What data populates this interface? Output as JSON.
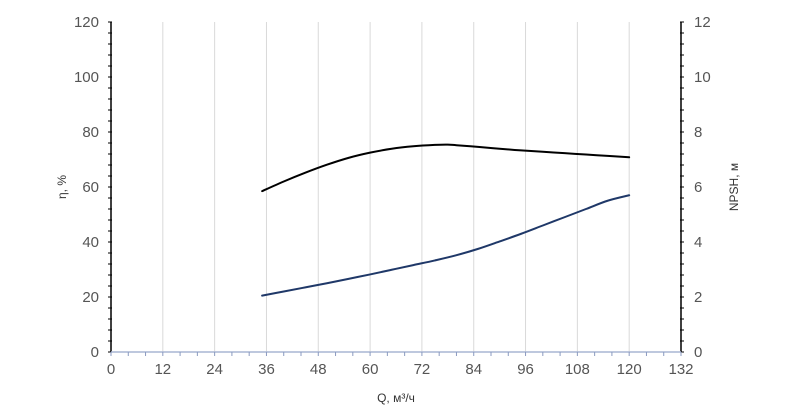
{
  "chart_data": {
    "type": "line",
    "title": "",
    "xlabel": "Q, м³/ч",
    "ylabel_left": "η, %",
    "ylabel_right": "NPSH, м",
    "xlim": [
      0,
      132
    ],
    "ylim_left": [
      0,
      120
    ],
    "ylim_right": [
      0,
      12
    ],
    "x_ticks": [
      "0",
      "12",
      "24",
      "36",
      "48",
      "60",
      "72",
      "84",
      "96",
      "108",
      "120",
      "132"
    ],
    "y_left_ticks": [
      "0",
      "20",
      "40",
      "60",
      "80",
      "100",
      "120"
    ],
    "y_right_ticks": [
      "0",
      "2",
      "4",
      "6",
      "8",
      "10",
      "12"
    ],
    "grid": "vertical",
    "legend": "none",
    "series": [
      {
        "axis": "left",
        "color": "#000000",
        "x": [
          35,
          40,
          45,
          50,
          55,
          60,
          65,
          70,
          75,
          78,
          80,
          85,
          90,
          95,
          100,
          105,
          110,
          115,
          120
        ],
        "y": [
          58.5,
          62.0,
          65.2,
          68.1,
          70.6,
          72.5,
          73.9,
          74.8,
          75.3,
          75.4,
          75.2,
          74.6,
          73.9,
          73.3,
          72.8,
          72.3,
          71.8,
          71.3,
          70.8
        ]
      },
      {
        "axis": "right",
        "color": "#1f3868",
        "x": [
          35,
          40,
          45,
          50,
          55,
          60,
          65,
          70,
          75,
          80,
          85,
          90,
          95,
          100,
          105,
          110,
          115,
          120
        ],
        "y": [
          2.05,
          2.2,
          2.35,
          2.5,
          2.66,
          2.82,
          2.99,
          3.16,
          3.33,
          3.52,
          3.75,
          4.02,
          4.3,
          4.6,
          4.9,
          5.2,
          5.5,
          5.7
        ]
      }
    ]
  }
}
